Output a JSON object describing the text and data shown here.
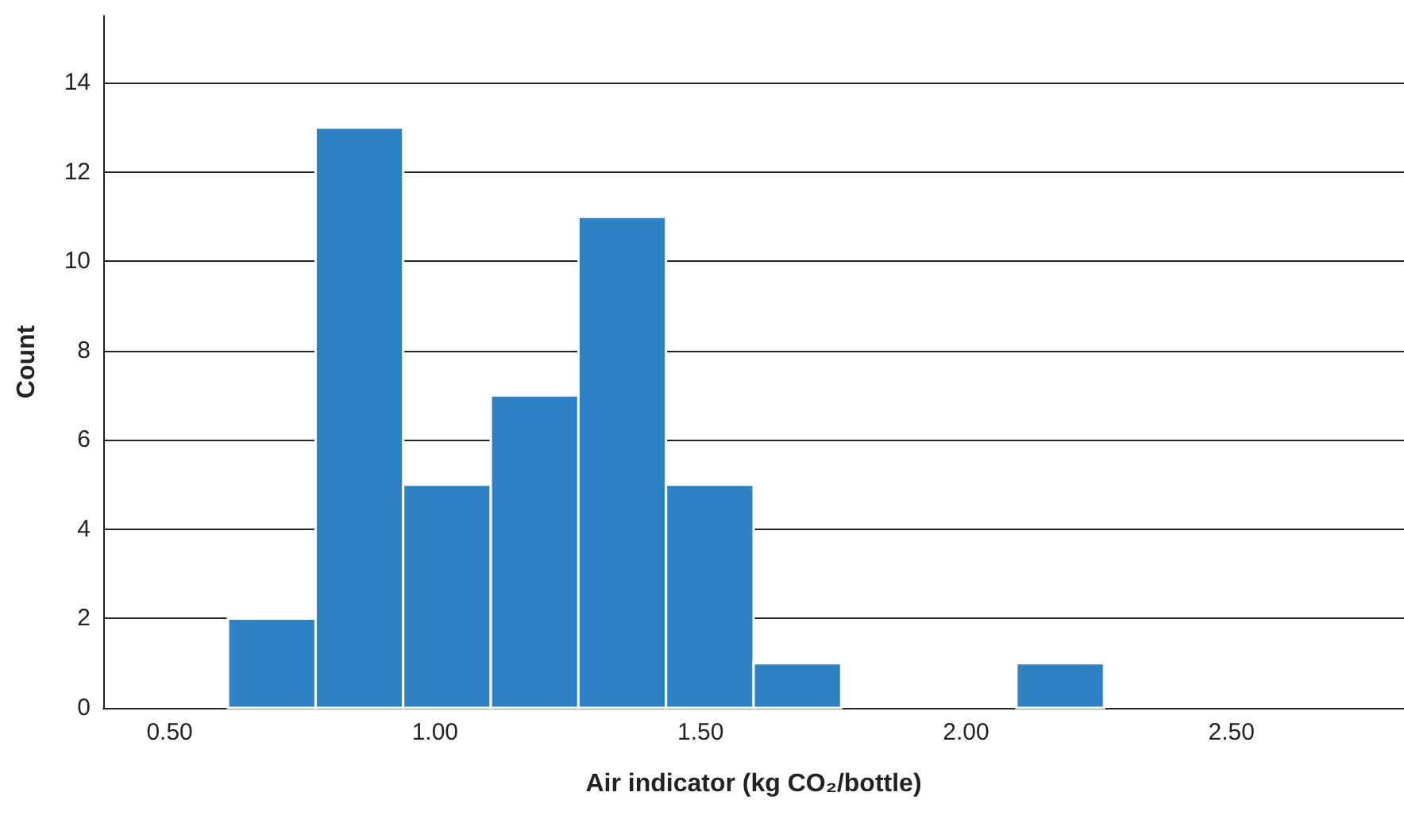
{
  "chart_data": {
    "type": "histogram",
    "xlabel": "Air indicator (kg CO₂/bottle)",
    "ylabel": "Count",
    "bins": [
      0.61,
      0.775,
      0.94,
      1.105,
      1.27,
      1.435,
      1.6,
      1.765,
      1.93,
      2.095,
      2.26
    ],
    "values": [
      2,
      13,
      5,
      7,
      11,
      5,
      1,
      0,
      0,
      1
    ],
    "color": "#2e81c2",
    "xlim": [
      0.375,
      2.825
    ],
    "xticks": [
      {
        "value": 0.5,
        "label": "0.50"
      },
      {
        "value": 1,
        "label": "1.00"
      },
      {
        "value": 1.5,
        "label": "1.50"
      },
      {
        "value": 2,
        "label": "2.00"
      },
      {
        "value": 2.5,
        "label": "2.50"
      }
    ],
    "ylim": [
      0,
      15.5
    ],
    "yticks": [
      0,
      2,
      4,
      6,
      8,
      10,
      12,
      14
    ],
    "grid": "y"
  }
}
